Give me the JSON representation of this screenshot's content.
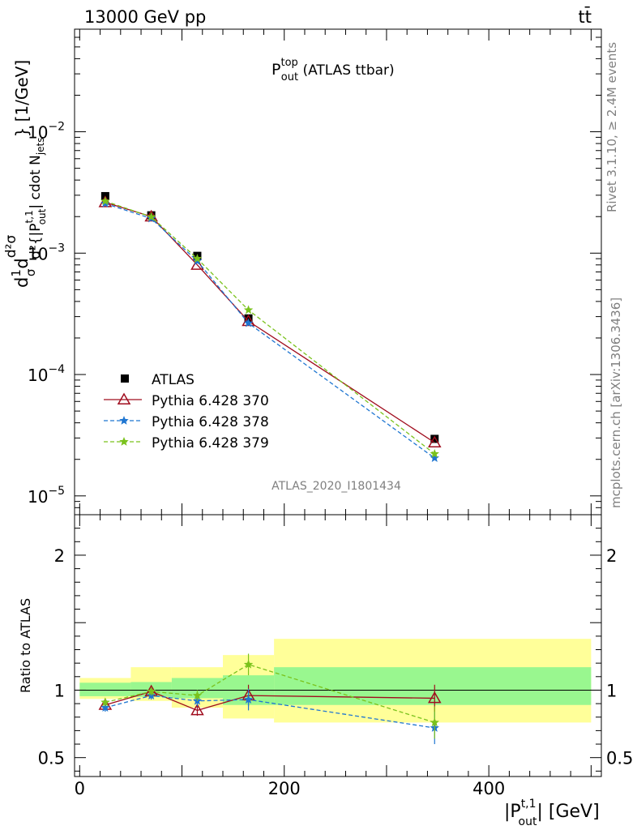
{
  "header": {
    "left": "13000 GeV pp",
    "right": "tt̄"
  },
  "side_labels": {
    "rivet": "Rivet 3.1.10, ≥ 2.4M events",
    "mcplots": "mcplots.cern.ch [arXiv:1306.3436]"
  },
  "chart_data": [
    {
      "type": "line",
      "panel": "main",
      "title": "P_out^top (ATLAS ttbar)",
      "title_main": "P",
      "title_sup": "top",
      "title_sub": "out",
      "title_rest": " (ATLAS ttbar)",
      "analysis_tag": "ATLAS_2020_I1801434",
      "ylabel": "d²σ / d{|P_out^t,1|} cdot N_jets × 1/σ dσ [1/GeV]",
      "ylabel_parts": {
        "prefix": "d",
        "frac_top": "1",
        "frac_bot": "σ",
        "d2": "d",
        "num_top": "d²σ",
        "den": "d²{|P",
        "den_sup": "t,1",
        "den_sub": "out",
        "den_rest": "| cdot N",
        "den_sub2": "jets",
        "units": "} [1/GeV]"
      },
      "xlim": [
        -5,
        510
      ],
      "ylim": [
        7e-06,
        0.07
      ],
      "yscale": "log",
      "ytick_labels": [
        "10",
        "10",
        "10",
        "10"
      ],
      "ytick_exponents": [
        "−5",
        "−4",
        "−3",
        "−2"
      ],
      "ytick_values": [
        1e-05,
        0.0001,
        0.001,
        0.01
      ],
      "x": [
        25,
        70,
        115,
        165,
        347
      ],
      "series": [
        {
          "name": "ATLAS",
          "color": "#000000",
          "marker": "square",
          "values": [
            0.00295,
            0.00205,
            0.00095,
            0.00029,
            2.95e-05
          ]
        },
        {
          "name": "Pythia 6.428 370",
          "color": "#a00d1e",
          "marker": "open-triangle",
          "line": "solid",
          "values": [
            0.00262,
            0.002,
            0.0008,
            0.000275,
            2.75e-05
          ]
        },
        {
          "name": "Pythia 6.428 378",
          "color": "#1f76d1",
          "marker": "star",
          "line": "dashed",
          "values": [
            0.00256,
            0.00193,
            0.00086,
            0.000265,
            2.05e-05
          ]
        },
        {
          "name": "Pythia 6.428 379",
          "color": "#7ac21c",
          "marker": "star",
          "line": "dashed",
          "values": [
            0.00268,
            0.00199,
            0.0009,
            0.00034,
            2.22e-05
          ]
        }
      ],
      "legend_position": "lower-left"
    },
    {
      "type": "line",
      "panel": "ratio",
      "ylabel": "Ratio to ATLAS",
      "xlabel_main": "|P",
      "xlabel_sup": "t,1",
      "xlabel_sub": "out",
      "xlabel_rest": "| [GeV]",
      "xlim": [
        -5,
        510
      ],
      "ylim": [
        0.36,
        2.3
      ],
      "xtick_labels": [
        "0",
        "200",
        "400"
      ],
      "xtick_values": [
        0,
        200,
        400
      ],
      "ytick_labels": [
        "0.5",
        "1",
        "2"
      ],
      "ytick_values": [
        0.5,
        1,
        2
      ],
      "bins": [
        [
          0,
          50
        ],
        [
          50,
          90
        ],
        [
          90,
          140
        ],
        [
          140,
          190
        ],
        [
          190,
          500
        ]
      ],
      "band_inner": [
        [
          0.955,
          1.055
        ],
        [
          0.95,
          1.06
        ],
        [
          0.94,
          1.09
        ],
        [
          0.89,
          1.11
        ],
        [
          0.89,
          1.17
        ]
      ],
      "band_outer": [
        [
          0.935,
          1.09
        ],
        [
          0.92,
          1.17
        ],
        [
          0.87,
          1.17
        ],
        [
          0.79,
          1.26
        ],
        [
          0.76,
          1.38
        ]
      ],
      "x": [
        25,
        70,
        115,
        165,
        347
      ],
      "series": [
        {
          "name": "Pythia 6.428 370",
          "color": "#a00d1e",
          "marker": "open-triangle",
          "line": "solid",
          "values": [
            0.89,
            0.99,
            0.85,
            0.96,
            0.94
          ],
          "errors": [
            0.03,
            0.03,
            0.04,
            0.08,
            0.1
          ]
        },
        {
          "name": "Pythia 6.428 378",
          "color": "#1f76d1",
          "marker": "star",
          "line": "dashed",
          "values": [
            0.87,
            0.96,
            0.92,
            0.93,
            0.72
          ],
          "errors": [
            0.03,
            0.03,
            0.04,
            0.08,
            0.12
          ]
        },
        {
          "name": "Pythia 6.428 379",
          "color": "#7ac21c",
          "marker": "star",
          "line": "dashed",
          "values": [
            0.91,
            0.99,
            0.96,
            1.19,
            0.76
          ],
          "errors": [
            0.03,
            0.03,
            0.04,
            0.08,
            0.12
          ]
        }
      ]
    }
  ],
  "colors": {
    "band_inner": "#99f78f",
    "band_outer": "#ffff99",
    "frame": "#000000",
    "muted": "#7f7f7f"
  }
}
